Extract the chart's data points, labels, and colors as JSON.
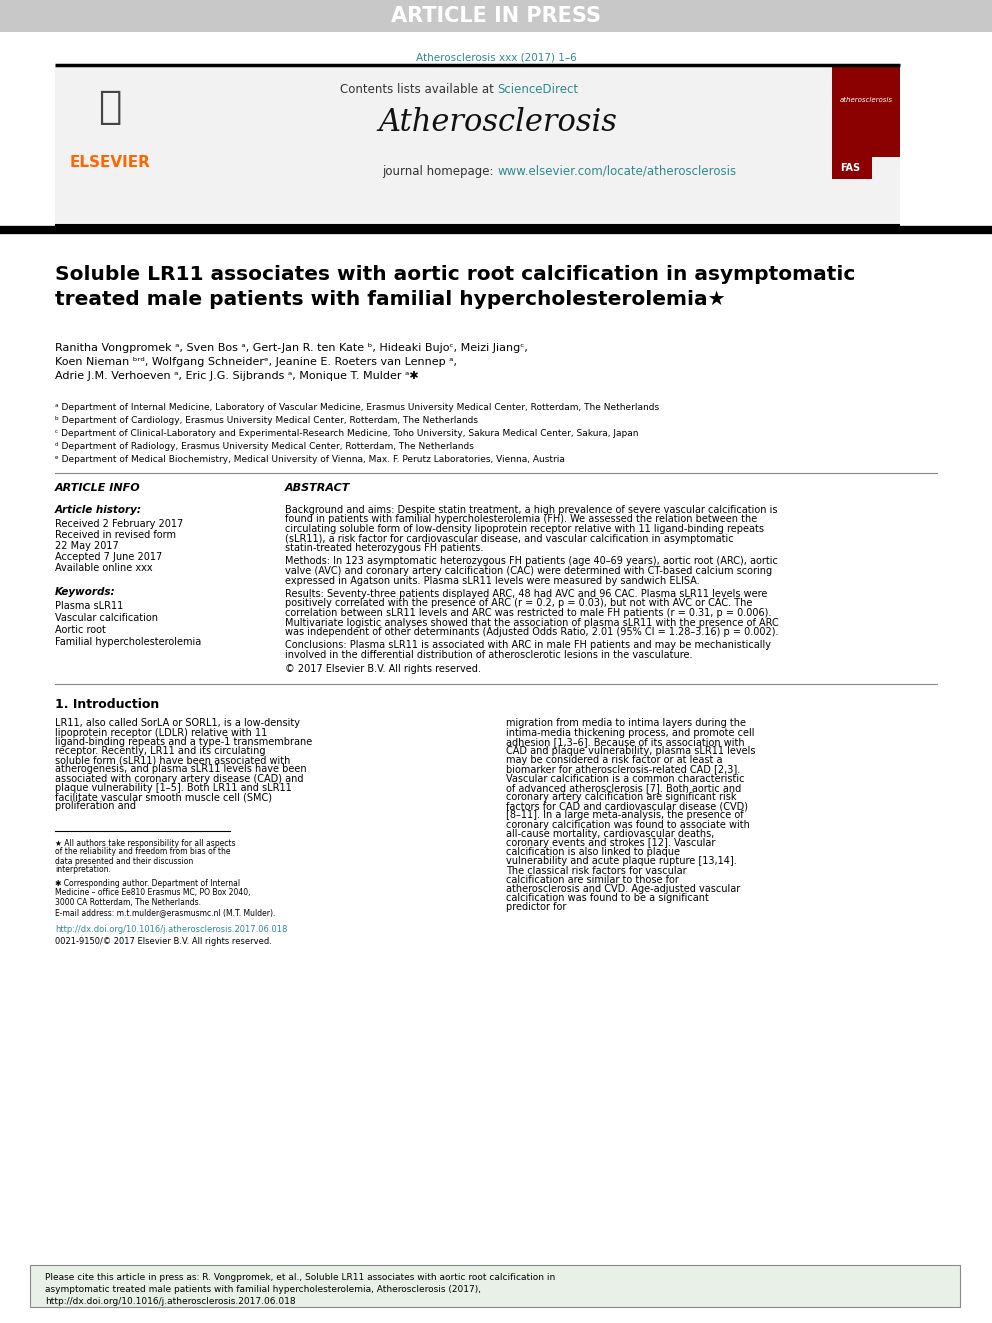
{
  "article_in_press_text": "ARTICLE IN PRESS",
  "article_in_press_bg": "#c8c8c8",
  "article_in_press_color": "#ffffff",
  "journal_ref": "Atherosclerosis xxx (2017) 1–6",
  "journal_ref_color": "#2e8b8b",
  "journal_name": "Atherosclerosis",
  "contents_text": "Contents lists available at ",
  "sciencedirect_text": "ScienceDirect",
  "sciencedirect_color": "#2e8b8b",
  "journal_homepage_text": "journal homepage: ",
  "journal_url": "www.elsevier.com/locate/atherosclerosis",
  "journal_url_color": "#2e8b8b",
  "elsevier_color": "#ff6600",
  "header_bg": "#f0f0f0",
  "header_border": "#000000",
  "title": "Soluble LR11 associates with aortic root calcification in asymptomatic\ntreated male patients with familial hypercholesterolemia★",
  "authors": "Ranitha Vongpromek ᵃ, Sven Bos ᵃ, Gert-Jan R. ten Kate ᵇ, Hideaki Bujoᶜ, Meizi Jiangᶜ,\nKoen Nieman ᵇʳᵈ, Wolfgang Schneiderᵉ, Jeanine E. Roeters van Lennep ᵃ,\nAdrie J.M. Verhoeven ᵃ, Eric J.G. Sijbrands ᵃ, Monique T. Mulder ᵃ✱",
  "affil_a": "ᵃ Department of Internal Medicine, Laboratory of Vascular Medicine, Erasmus University Medical Center, Rotterdam, The Netherlands",
  "affil_b": "ᵇ Department of Cardiology, Erasmus University Medical Center, Rotterdam, The Netherlands",
  "affil_c": "ᶜ Department of Clinical-Laboratory and Experimental-Research Medicine, Toho University, Sakura Medical Center, Sakura, Japan",
  "affil_d": "ᵈ Department of Radiology, Erasmus University Medical Center, Rotterdam, The Netherlands",
  "affil_e": "ᵉ Department of Medical Biochemistry, Medical University of Vienna, Max. F. Perutz Laboratories, Vienna, Austria",
  "article_info_title": "ARTICLE INFO",
  "abstract_title": "ABSTRACT",
  "article_history": "Article history:",
  "received": "Received 2 February 2017",
  "received_revised": "Received in revised form\n22 May 2017",
  "accepted": "Accepted 7 June 2017",
  "available": "Available online xxx",
  "keywords_title": "Keywords:",
  "keywords": "Plasma sLR11\nVascular calcification\nAortic root\nFamilial hypercholesterolemia",
  "abstract_background": "Background and aims: Despite statin treatment, a high prevalence of severe vascular calcification is found in patients with familial hypercholesterolemia (FH). We assessed the relation between the circulating soluble form of low-density lipoprotein receptor relative with 11 ligand-binding repeats (sLR11), a risk factor for cardiovascular disease, and vascular calcification in asymptomatic statin-treated heterozygous FH patients.",
  "abstract_methods": "Methods: In 123 asymptomatic heterozygous FH patients (age 40–69 years), aortic root (ARC), aortic valve (AVC) and coronary artery calcification (CAC) were determined with CT-based calcium scoring expressed in Agatson units. Plasma sLR11 levels were measured by sandwich ELISA.",
  "abstract_results": "Results: Seventy-three patients displayed ARC, 48 had AVC and 96 CAC. Plasma sLR11 levels were positively correlated with the presence of ARC (r = 0.2, p = 0.03), but not with AVC or CAC. The correlation between sLR11 levels and ARC was restricted to male FH patients (r = 0.31, p = 0.006). Multivariate logistic analyses showed that the association of plasma sLR11 with the presence of ARC was independent of other determinants (Adjusted Odds Ratio, 2.01 (95% CI = 1.28–3.16) p = 0.002).",
  "abstract_conclusions": "Conclusions: Plasma sLR11 is associated with ARC in male FH patients and may be mechanistically involved in the differential distribution of atherosclerotic lesions in the vasculature.",
  "copyright": "© 2017 Elsevier B.V. All rights reserved.",
  "intro_title": "1. Introduction",
  "intro_col1": "LR11, also called SorLA or SORL1, is a low-density lipoprotein receptor (LDLR) relative with 11 ligand-binding repeats and a type-1 transmembrane receptor. Recently, LR11 and its circulating soluble form (sLR11) have been associated with atherogenesis, and plasma sLR11 levels have been associated with coronary artery disease (CAD) and plaque vulnerability [1–5]. Both LR11 and sLR11 facilitate vascular smooth muscle cell (SMC) proliferation and",
  "intro_col2": "migration from media to intima layers during the intima-media thickening process, and promote cell adhesion [1,3–6]. Because of its association with CAD and plaque vulnerability, plasma sLR11 levels may be considered a risk factor or at least a biomarker for atherosclerosis-related CAD [2,3].\n    Vascular calcification is a common characteristic of advanced atherosclerosis [7]. Both aortic and coronary artery calcification are significant risk factors for CAD and cardiovascular disease (CVD) [8–11]. In a large meta-analysis, the presence of coronary calcification was found to associate with all-cause mortality, cardiovascular deaths, coronary events and strokes [12]. Vascular calcification is also linked to plaque vulnerability and acute plaque rupture [13,14]. The classical risk factors for vascular calcification are similar to those for atherosclerosis and CVD. Age-adjusted vascular calcification was found to be a significant predictor for",
  "footnote1": "★ All authors take responsibility for all aspects of the reliability and freedom from bias of the data presented and their discussion interpretation.",
  "footnote2": "✱ Corresponding author. Department of Internal Medicine – office Ee810 Erasmus MC, PO Box 2040, 3000 CA Rotterdam, The Netherlands.",
  "footnote3": "E-mail address: m.t.mulder@erasmusmc.nl (M.T. Mulder).",
  "doi_link": "http://dx.doi.org/10.1016/j.atherosclerosis.2017.06.018",
  "issn": "0021-9150/© 2017 Elsevier B.V. All rights reserved.",
  "cite_text": "Please cite this article in press as: R. Vongpromek, et al., Soluble LR11 associates with aortic root calcification in asymptomatic treated male patients with familial hypercholesterolemia, Atherosclerosis (2017), http://dx.doi.org/10.1016/j.atherosclerosis.2017.06.018",
  "cite_bg": "#e8f0e8",
  "bg_color": "#ffffff",
  "text_color": "#000000",
  "link_color": "#2e8b8b"
}
